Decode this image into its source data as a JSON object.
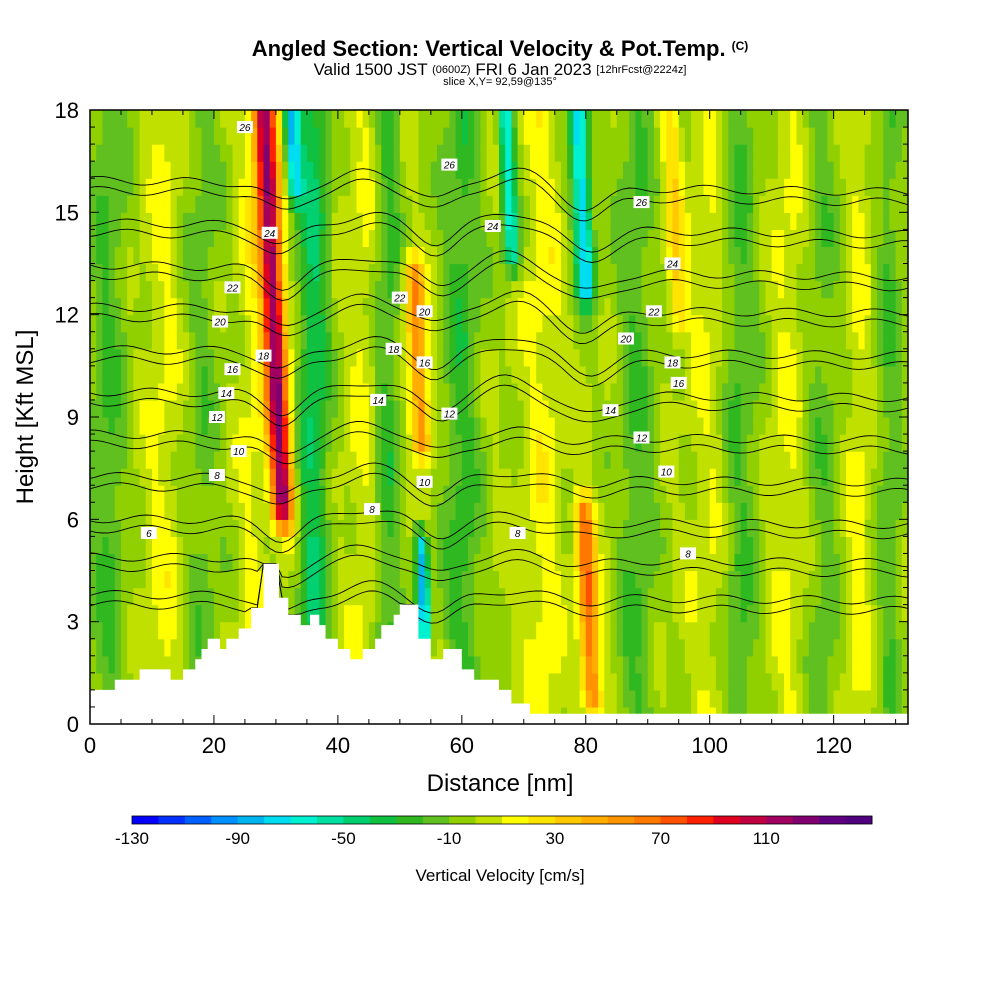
{
  "chart_data": {
    "type": "heatmap",
    "title": "Angled Section: Vertical Velocity & Pot.Temp.",
    "title_unit": "(C)",
    "subtitle_main": "Valid 1500 JST",
    "subtitle_utc": "(0600Z)",
    "subtitle_date": "FRI 6 Jan 2023",
    "subtitle_fcst": "[12hrFcst@2224z]",
    "slice_label": "slice X,Y= 92,59@135°",
    "xlabel": "Distance [nm]",
    "ylabel": "Height [Kft MSL]",
    "xlim": [
      0,
      132
    ],
    "ylim": [
      0,
      18
    ],
    "x_ticks": [
      "0",
      "20",
      "40",
      "60",
      "80",
      "100",
      "120"
    ],
    "y_ticks": [
      "0",
      "3",
      "6",
      "9",
      "12",
      "15",
      "18"
    ],
    "colorbar": {
      "label": "Vertical Velocity [cm/s]",
      "tick_labels": [
        "-130",
        "-90",
        "-50",
        "-10",
        "30",
        "70",
        "110"
      ],
      "min": -130,
      "max": 150,
      "step": 10,
      "colors": [
        "#0000ff",
        "#0030ff",
        "#0060ff",
        "#0090ff",
        "#00b4f0",
        "#00dcf0",
        "#00f0d2",
        "#00e0a0",
        "#00d070",
        "#10c040",
        "#30b820",
        "#60c020",
        "#90d000",
        "#c0e000",
        "#ffff00",
        "#ffe400",
        "#ffc800",
        "#ffae00",
        "#ff9400",
        "#ff7800",
        "#ff5000",
        "#ff2000",
        "#e00020",
        "#c00040",
        "#a00060",
        "#800070",
        "#600080",
        "#50007f"
      ]
    },
    "terrain_kft": [
      [
        0,
        1.0
      ],
      [
        4,
        1.0
      ],
      [
        4,
        1.3
      ],
      [
        8,
        1.3
      ],
      [
        8,
        1.6
      ],
      [
        13,
        1.6
      ],
      [
        13,
        1.3
      ],
      [
        15,
        1.3
      ],
      [
        15,
        1.6
      ],
      [
        17,
        1.6
      ],
      [
        17,
        1.9
      ],
      [
        18,
        1.9
      ],
      [
        18,
        2.2
      ],
      [
        19,
        2.2
      ],
      [
        19,
        2.5
      ],
      [
        21,
        2.5
      ],
      [
        21,
        2.2
      ],
      [
        22,
        2.2
      ],
      [
        22,
        2.5
      ],
      [
        24,
        2.5
      ],
      [
        24,
        2.8
      ],
      [
        26,
        2.8
      ],
      [
        26,
        3.4
      ],
      [
        28,
        3.4
      ],
      [
        28,
        4.7
      ],
      [
        30.5,
        4.7
      ],
      [
        30.5,
        3.7
      ],
      [
        32,
        3.7
      ],
      [
        32,
        3.2
      ],
      [
        34,
        3.2
      ],
      [
        34,
        2.9
      ],
      [
        35.5,
        2.9
      ],
      [
        35.5,
        3.2
      ],
      [
        37,
        3.2
      ],
      [
        37,
        2.9
      ],
      [
        38,
        2.9
      ],
      [
        38,
        2.5
      ],
      [
        40,
        2.5
      ],
      [
        40,
        2.2
      ],
      [
        42,
        2.2
      ],
      [
        42,
        1.9
      ],
      [
        44,
        1.9
      ],
      [
        44,
        2.2
      ],
      [
        46,
        2.2
      ],
      [
        46,
        2.5
      ],
      [
        47,
        2.5
      ],
      [
        47,
        2.9
      ],
      [
        49,
        2.9
      ],
      [
        49,
        3.2
      ],
      [
        50,
        3.2
      ],
      [
        50,
        3.5
      ],
      [
        53,
        3.5
      ],
      [
        53,
        2.5
      ],
      [
        55,
        2.5
      ],
      [
        55,
        1.9
      ],
      [
        57,
        1.9
      ],
      [
        57,
        2.2
      ],
      [
        60,
        2.2
      ],
      [
        60,
        1.6
      ],
      [
        62,
        1.6
      ],
      [
        62,
        1.3
      ],
      [
        66,
        1.3
      ],
      [
        66,
        1.0
      ],
      [
        68,
        1.0
      ],
      [
        68,
        0.6
      ],
      [
        71,
        0.6
      ],
      [
        71,
        0.3
      ],
      [
        132,
        0.3
      ],
      [
        132,
        0
      ]
    ],
    "updraft_cores": [
      {
        "x": 31,
        "z0": 6.5,
        "z1": 18,
        "w": 120,
        "width_nm": 1.8
      },
      {
        "x": 53.5,
        "z0": 8.5,
        "z1": 13,
        "w": 60,
        "width_nm": 1.5
      },
      {
        "x": 81,
        "z0": 1.0,
        "z1": 6.0,
        "w": 70,
        "width_nm": 1.5
      },
      {
        "x": 95,
        "z0": 12,
        "z1": 18,
        "w": 30,
        "width_nm": 1.5
      }
    ],
    "downdraft_cores": [
      {
        "x": 33,
        "z0": 16,
        "z1": 18,
        "w": -80,
        "width_nm": 1.2
      },
      {
        "x": 54,
        "z0": 3.0,
        "z1": 5.0,
        "w": -90,
        "width_nm": 1.0
      },
      {
        "x": 68,
        "z0": 14,
        "z1": 18,
        "w": -70,
        "width_nm": 1.2
      },
      {
        "x": 80,
        "z0": 13,
        "z1": 18,
        "w": -80,
        "width_nm": 1.5
      }
    ],
    "pot_temp_contours_c": [
      6,
      8,
      10,
      12,
      14,
      16,
      18,
      20,
      22,
      24,
      26
    ],
    "contour_labels": [
      {
        "text": "26",
        "x": 25,
        "z": 17.5
      },
      {
        "text": "26",
        "x": 58,
        "z": 16.4
      },
      {
        "text": "26",
        "x": 89,
        "z": 15.3
      },
      {
        "text": "24",
        "x": 29,
        "z": 14.4
      },
      {
        "text": "24",
        "x": 65,
        "z": 14.6
      },
      {
        "text": "24",
        "x": 94,
        "z": 13.5
      },
      {
        "text": "22",
        "x": 23,
        "z": 12.8
      },
      {
        "text": "22",
        "x": 50,
        "z": 12.5
      },
      {
        "text": "22",
        "x": 91,
        "z": 12.1
      },
      {
        "text": "20",
        "x": 21,
        "z": 11.8
      },
      {
        "text": "20",
        "x": 54,
        "z": 12.1
      },
      {
        "text": "20",
        "x": 86.5,
        "z": 11.3
      },
      {
        "text": "18",
        "x": 28,
        "z": 10.8
      },
      {
        "text": "18",
        "x": 49,
        "z": 11.0
      },
      {
        "text": "18",
        "x": 94,
        "z": 10.6
      },
      {
        "text": "16",
        "x": 23,
        "z": 10.4
      },
      {
        "text": "16",
        "x": 54,
        "z": 10.6
      },
      {
        "text": "16",
        "x": 95,
        "z": 10.0
      },
      {
        "text": "14",
        "x": 22,
        "z": 9.7
      },
      {
        "text": "14",
        "x": 46.5,
        "z": 9.5
      },
      {
        "text": "14",
        "x": 84,
        "z": 9.2
      },
      {
        "text": "12",
        "x": 20.5,
        "z": 9.0
      },
      {
        "text": "12",
        "x": 58,
        "z": 9.1
      },
      {
        "text": "12",
        "x": 89,
        "z": 8.4
      },
      {
        "text": "10",
        "x": 24,
        "z": 8.0
      },
      {
        "text": "10",
        "x": 54,
        "z": 7.1
      },
      {
        "text": "10",
        "x": 93,
        "z": 7.4
      },
      {
        "text": "8",
        "x": 20.5,
        "z": 7.3
      },
      {
        "text": "8",
        "x": 45.5,
        "z": 6.3
      },
      {
        "text": "8",
        "x": 69,
        "z": 5.6
      },
      {
        "text": "8",
        "x": 96.5,
        "z": 5.0
      },
      {
        "text": "6",
        "x": 9.5,
        "z": 5.6
      }
    ]
  }
}
